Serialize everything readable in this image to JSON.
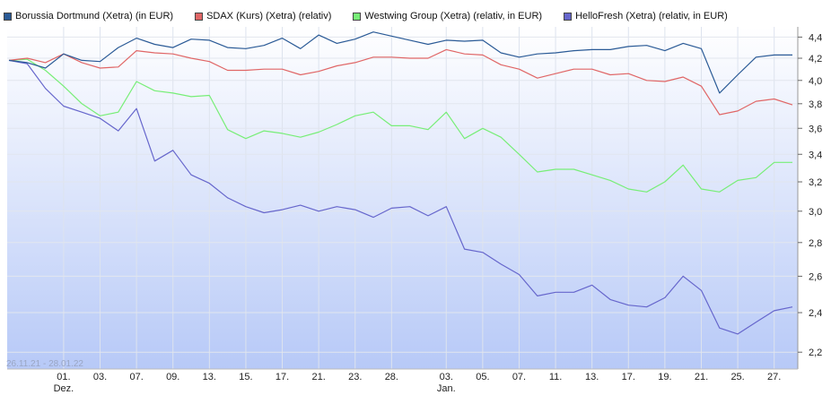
{
  "chart_data": {
    "type": "line",
    "title": "",
    "xlabel": "",
    "ylabel": "",
    "date_range_label": "26.11.21 - 28.01.22",
    "ylim": [
      2.12,
      4.5
    ],
    "y_scale": "log",
    "grid": true,
    "legend_position": "top-left",
    "y_ticks": [
      {
        "value": 2.2,
        "label": "2,2"
      },
      {
        "value": 2.4,
        "label": "2,4"
      },
      {
        "value": 2.6,
        "label": "2,6"
      },
      {
        "value": 2.8,
        "label": "2,8"
      },
      {
        "value": 3.0,
        "label": "3,0"
      },
      {
        "value": 3.2,
        "label": "3,2"
      },
      {
        "value": 3.4,
        "label": "3,4"
      },
      {
        "value": 3.6,
        "label": "3,6"
      },
      {
        "value": 3.8,
        "label": "3,8"
      },
      {
        "value": 4.0,
        "label": "4,0"
      },
      {
        "value": 4.2,
        "label": "4,2"
      },
      {
        "value": 4.4,
        "label": "4,4"
      }
    ],
    "x_ticks": [
      {
        "date": "2021-12-01",
        "label": "01.",
        "sub": "Dez."
      },
      {
        "date": "2021-12-03",
        "label": "03.",
        "sub": ""
      },
      {
        "date": "2021-12-07",
        "label": "07.",
        "sub": ""
      },
      {
        "date": "2021-12-09",
        "label": "09.",
        "sub": ""
      },
      {
        "date": "2021-12-13",
        "label": "13.",
        "sub": ""
      },
      {
        "date": "2021-12-15",
        "label": "15.",
        "sub": ""
      },
      {
        "date": "2021-12-17",
        "label": "17.",
        "sub": ""
      },
      {
        "date": "2021-12-21",
        "label": "21.",
        "sub": ""
      },
      {
        "date": "2021-12-23",
        "label": "23.",
        "sub": ""
      },
      {
        "date": "2021-12-28",
        "label": "28.",
        "sub": ""
      },
      {
        "date": "2022-01-03",
        "label": "03.",
        "sub": "Jan."
      },
      {
        "date": "2022-01-05",
        "label": "05.",
        "sub": ""
      },
      {
        "date": "2022-01-07",
        "label": "07.",
        "sub": ""
      },
      {
        "date": "2022-01-11",
        "label": "11.",
        "sub": ""
      },
      {
        "date": "2022-01-13",
        "label": "13.",
        "sub": ""
      },
      {
        "date": "2022-01-17",
        "label": "17.",
        "sub": ""
      },
      {
        "date": "2022-01-19",
        "label": "19.",
        "sub": ""
      },
      {
        "date": "2022-01-21",
        "label": "21.",
        "sub": ""
      },
      {
        "date": "2022-01-25",
        "label": "25.",
        "sub": ""
      },
      {
        "date": "2022-01-27",
        "label": "27.",
        "sub": ""
      }
    ],
    "x": [
      "2021-11-26",
      "2021-11-29",
      "2021-11-30",
      "2021-12-01",
      "2021-12-02",
      "2021-12-03",
      "2021-12-06",
      "2021-12-07",
      "2021-12-08",
      "2021-12-09",
      "2021-12-10",
      "2021-12-13",
      "2021-12-14",
      "2021-12-15",
      "2021-12-16",
      "2021-12-17",
      "2021-12-20",
      "2021-12-21",
      "2021-12-22",
      "2021-12-23",
      "2021-12-27",
      "2021-12-28",
      "2021-12-29",
      "2021-12-30",
      "2022-01-03",
      "2022-01-04",
      "2022-01-05",
      "2022-01-06",
      "2022-01-07",
      "2022-01-10",
      "2022-01-11",
      "2022-01-12",
      "2022-01-13",
      "2022-01-14",
      "2022-01-17",
      "2022-01-18",
      "2022-01-19",
      "2022-01-20",
      "2022-01-21",
      "2022-01-24",
      "2022-01-25",
      "2022-01-26",
      "2022-01-27",
      "2022-01-28"
    ],
    "series": [
      {
        "name": "Borussia Dortmund (Xetra) (in EUR)",
        "color": "#2a5a96",
        "values": [
          4.18,
          4.16,
          4.11,
          4.24,
          4.18,
          4.17,
          4.3,
          4.39,
          4.33,
          4.3,
          4.38,
          4.37,
          4.3,
          4.29,
          4.32,
          4.39,
          4.29,
          4.42,
          4.34,
          4.38,
          4.45,
          4.41,
          4.37,
          4.33,
          4.37,
          4.36,
          4.37,
          4.25,
          4.21,
          4.24,
          4.25,
          4.27,
          4.28,
          4.28,
          4.31,
          4.32,
          4.27,
          4.34,
          4.29,
          3.89,
          4.05,
          4.21,
          4.23,
          4.23
        ]
      },
      {
        "name": "SDAX (Kurs) (Xetra) (relativ)",
        "color": "#e06666",
        "values": [
          4.18,
          4.2,
          4.16,
          4.24,
          4.16,
          4.11,
          4.12,
          4.27,
          4.25,
          4.24,
          4.2,
          4.17,
          4.09,
          4.09,
          4.1,
          4.1,
          4.05,
          4.08,
          4.13,
          4.16,
          4.21,
          4.21,
          4.2,
          4.2,
          4.28,
          4.24,
          4.23,
          4.14,
          4.1,
          4.02,
          4.06,
          4.1,
          4.1,
          4.05,
          4.06,
          4.0,
          3.99,
          4.03,
          3.95,
          3.71,
          3.74,
          3.82,
          3.84,
          3.79
        ]
      },
      {
        "name": "Westwing Group (Xetra) (relativ, in EUR)",
        "color": "#77ee77",
        "values": [
          4.18,
          4.19,
          4.09,
          3.95,
          3.8,
          3.7,
          3.73,
          3.99,
          3.91,
          3.89,
          3.86,
          3.87,
          3.59,
          3.52,
          3.58,
          3.56,
          3.53,
          3.57,
          3.63,
          3.7,
          3.73,
          3.62,
          3.62,
          3.59,
          3.73,
          3.52,
          3.6,
          3.53,
          3.4,
          3.27,
          3.29,
          3.29,
          3.25,
          3.21,
          3.15,
          3.13,
          3.2,
          3.32,
          3.15,
          3.13,
          3.21,
          3.23,
          3.34,
          3.34
        ]
      },
      {
        "name": "HelloFresh (Xetra) (relativ, in EUR)",
        "color": "#6666cc",
        "values": [
          4.18,
          4.15,
          3.93,
          3.78,
          3.73,
          3.68,
          3.58,
          3.76,
          3.35,
          3.43,
          3.25,
          3.19,
          3.09,
          3.03,
          2.99,
          3.01,
          3.04,
          3.0,
          3.03,
          3.01,
          2.96,
          3.02,
          3.03,
          2.97,
          3.03,
          2.76,
          2.74,
          2.67,
          2.61,
          2.49,
          2.51,
          2.51,
          2.55,
          2.47,
          2.44,
          2.43,
          2.48,
          2.6,
          2.52,
          2.32,
          2.29,
          2.35,
          2.41,
          2.43
        ]
      }
    ]
  }
}
